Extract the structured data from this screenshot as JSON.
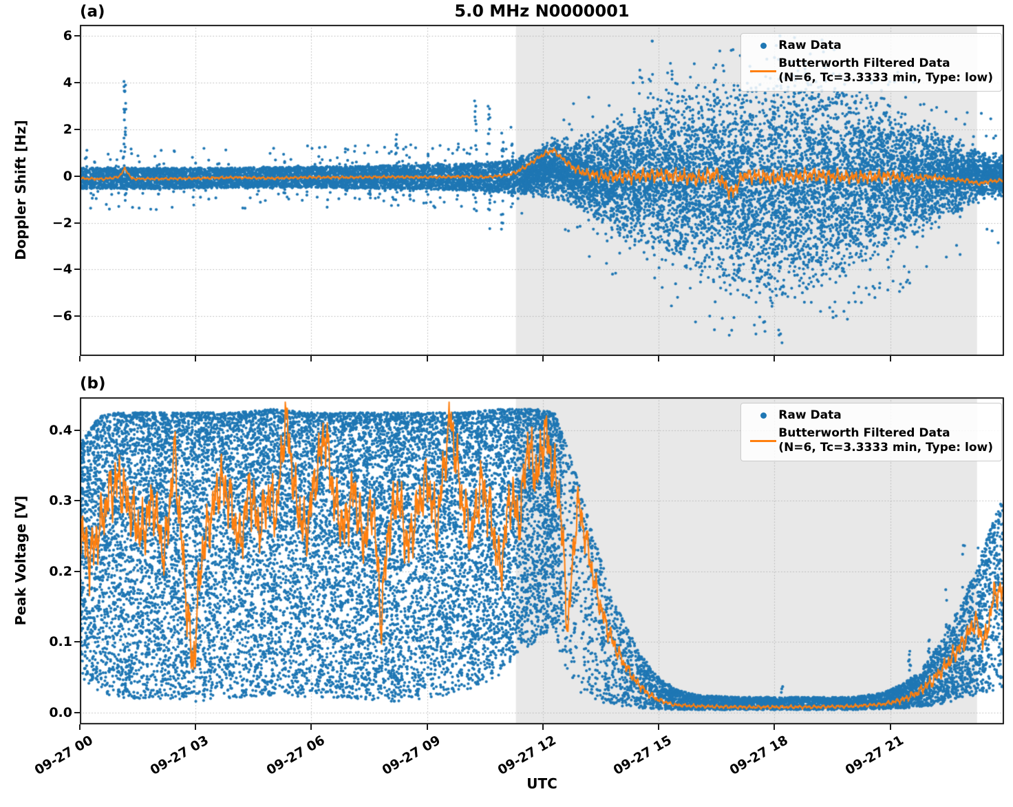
{
  "figure": {
    "title": "5.0 MHz N0000001",
    "xlabel": "UTC"
  },
  "panels": [
    {
      "tag": "(a)",
      "ylabel": "Doppler Shift [Hz]"
    },
    {
      "tag": "(b)",
      "ylabel": "Peak Voltage [V]"
    }
  ],
  "legend": {
    "items": [
      {
        "label": "Raw Data"
      },
      {
        "label_line1": "Butterworth Filtered Data",
        "label_line2": "(N=6, Tc=3.3333 min, Type: low)"
      }
    ]
  },
  "colors": {
    "raw": "#1f77b4",
    "filtered": "#ff7f0e",
    "shade": "#e8e8e8",
    "grid": "#b3b3b3",
    "spine": "#1a1a1a"
  },
  "chart_data": [
    {
      "type": "scatter+line",
      "panel": "(a)",
      "title": "5.0 MHz N0000001",
      "xlabel": "UTC",
      "ylabel": "Doppler Shift [Hz]",
      "xlim_hours": [
        0,
        23.95
      ],
      "ylim": [
        -7.7,
        6.47
      ],
      "xticks": {
        "hours": [
          0,
          3,
          6,
          9,
          12,
          15,
          18,
          21
        ],
        "labels": [
          "09-27 00",
          "09-27 03",
          "09-27 06",
          "09-27 09",
          "09-27 12",
          "09-27 15",
          "09-27 18",
          "09-27 21"
        ]
      },
      "yticks": {
        "values": [
          6,
          4,
          2,
          0,
          -2,
          -4,
          -6
        ],
        "labels": [
          "6",
          "4",
          "2",
          "0",
          "−2",
          "−4",
          "−6"
        ]
      },
      "grid": true,
      "legend_loc": "upper right",
      "legend_entries": [
        "Raw Data",
        "Butterworth Filtered Data (N=6, Tc=3.3333 min, Type: low)"
      ],
      "shaded_region_hours": {
        "t0": 11.3,
        "t1": 23.25
      },
      "series": [
        {
          "name": "Raw Data",
          "type": "scatter",
          "color": "#1f77b4",
          "n_points": 15000,
          "dist_wide": "triangular",
          "time_density": {
            "t": [
              0,
              11.4,
              11.5,
              23.95
            ],
            "w": [
              0.8,
              0.8,
              1.25,
              1.25
            ]
          },
          "envelope": {
            "t": [
              0,
              2,
              4,
              6,
              8,
              9.5,
              10.5,
              11.3,
              11.8,
              12.3,
              12.8,
              13.3,
              14,
              15,
              16,
              17,
              17.5,
              18,
              18.5,
              19,
              20,
              21,
              22,
              22.5,
              23,
              23.5,
              23.95
            ],
            "hi": [
              0.35,
              0.35,
              0.35,
              0.4,
              0.45,
              0.5,
              0.55,
              0.7,
              1.1,
              1.7,
              1.6,
              1.9,
              2.6,
              3.4,
              3.9,
              4.3,
              4.4,
              4.4,
              4.4,
              4.3,
              4.0,
              3.4,
              2.4,
              1.9,
              1.3,
              1.0,
              0.95
            ],
            "lo": [
              -0.55,
              -0.55,
              -0.5,
              -0.5,
              -0.55,
              -0.6,
              -0.65,
              -0.75,
              -0.85,
              -1.0,
              -1.3,
              -1.9,
              -2.8,
              -3.6,
              -4.4,
              -5.2,
              -5.5,
              -5.6,
              -5.5,
              -5.0,
              -4.4,
              -3.5,
              -2.4,
              -1.9,
              -1.35,
              -1.0,
              -0.95
            ]
          },
          "halo": {
            "frac": 0.05,
            "extra": 0.9,
            "t_max": 11.5
          },
          "outliers": {
            "frac": 0.018,
            "t_min": 12.5,
            "up": 1.6,
            "down": 1.9,
            "clip": [
              -7.45,
              6.3
            ]
          },
          "spikes": [
            {
              "t": 1.17,
              "lo": -1.05,
              "hi": 4.05,
              "n": 26
            },
            {
              "t": 2.05,
              "lo": -0.9,
              "hi": 0.6,
              "n": 8
            },
            {
              "t": 4.3,
              "lo": -0.7,
              "hi": 0.9,
              "n": 8
            },
            {
              "t": 5.3,
              "lo": -0.9,
              "hi": 1.0,
              "n": 10
            },
            {
              "t": 6.9,
              "lo": -0.9,
              "hi": 1.2,
              "n": 10
            },
            {
              "t": 7.5,
              "lo": -1.0,
              "hi": 1.4,
              "n": 10
            },
            {
              "t": 8.2,
              "lo": -1.6,
              "hi": 2.0,
              "n": 16
            },
            {
              "t": 8.55,
              "lo": -1.1,
              "hi": 1.5,
              "n": 10
            },
            {
              "t": 9.0,
              "lo": -0.8,
              "hi": 1.1,
              "n": 8
            },
            {
              "t": 10.25,
              "lo": -1.6,
              "hi": 3.3,
              "n": 20
            },
            {
              "t": 10.6,
              "lo": -2.6,
              "hi": 3.0,
              "n": 16
            },
            {
              "t": 10.95,
              "lo": -2.3,
              "hi": 2.2,
              "n": 14
            },
            {
              "t": 11.2,
              "lo": -1.4,
              "hi": 2.1,
              "n": 10
            },
            {
              "t": 14.85,
              "lo": -2.5,
              "hi": 5.9,
              "n": 12
            },
            {
              "t": 17.4,
              "lo": -7.35,
              "hi": 4.2,
              "n": 8
            },
            {
              "t": 18.15,
              "lo": -7.0,
              "hi": 4.5,
              "n": 8
            },
            {
              "t": 19.6,
              "lo": -6.3,
              "hi": 4.0,
              "n": 6
            }
          ]
        },
        {
          "name": "Butterworth Filtered Data (N=6, Tc=3.3333 min, Type: low)",
          "type": "line",
          "color": "#ff7f0e",
          "keypoints": {
            "t": [
              0,
              0.6,
              1.0,
              1.17,
              1.35,
              2,
              3,
              4,
              5,
              6,
              7,
              8,
              9,
              10,
              10.5,
              11,
              11.3,
              11.6,
              11.9,
              12.1,
              12.28,
              12.5,
              12.8,
              13.1,
              13.5,
              14,
              15,
              16,
              16.5,
              16.9,
              17.2,
              18,
              19,
              20,
              21,
              21.5,
              22,
              22.5,
              23,
              23.3,
              23.6,
              23.95
            ],
            "v": [
              -0.1,
              -0.13,
              -0.05,
              0.32,
              -0.12,
              -0.12,
              -0.1,
              -0.06,
              -0.1,
              -0.05,
              -0.06,
              -0.04,
              -0.05,
              -0.02,
              -0.05,
              0.02,
              0.15,
              0.45,
              0.8,
              1.0,
              1.1,
              0.75,
              0.35,
              0.12,
              0.0,
              -0.05,
              0.05,
              -0.1,
              0.1,
              -0.75,
              0.05,
              -0.1,
              0.05,
              -0.05,
              0.0,
              -0.1,
              -0.05,
              -0.12,
              -0.2,
              -0.32,
              -0.22,
              -0.18
            ]
          },
          "noise_amp": {
            "t": [
              0,
              10.8,
              11.5,
              12.6,
              13.5,
              16,
              19,
              21,
              21.8,
              22.5,
              23.95
            ],
            "a": [
              0.055,
              0.06,
              0.09,
              0.13,
              0.27,
              0.33,
              0.3,
              0.27,
              0.15,
              0.1,
              0.08
            ]
          },
          "clip": [
            -7.5,
            6.3
          ]
        }
      ]
    },
    {
      "type": "scatter+line",
      "panel": "(b)",
      "title": "5.0 MHz N0000001",
      "xlabel": "UTC",
      "ylabel": "Peak Voltage [V]",
      "xlim_hours": [
        0,
        23.95
      ],
      "ylim": [
        -0.0166,
        0.4468
      ],
      "xticks": {
        "hours": [
          0,
          3,
          6,
          9,
          12,
          15,
          18,
          21
        ],
        "labels": [
          "09-27 00",
          "09-27 03",
          "09-27 06",
          "09-27 09",
          "09-27 12",
          "09-27 15",
          "09-27 18",
          "09-27 21"
        ]
      },
      "yticks": {
        "values": [
          0.4,
          0.3,
          0.2,
          0.1,
          0.0
        ],
        "labels": [
          "0.4",
          "0.3",
          "0.2",
          "0.1",
          "0.0"
        ]
      },
      "grid": true,
      "legend_loc": "upper right",
      "legend_entries": [
        "Raw Data",
        "Butterworth Filtered Data (N=6, Tc=3.3333 min, Type: low)"
      ],
      "shaded_region_hours": {
        "t0": 11.3,
        "t1": 23.25
      },
      "series": [
        {
          "name": "Raw Data",
          "type": "scatter",
          "color": "#1f77b4",
          "n_points": 19000,
          "dist_wide": "topbias",
          "time_density": {
            "t": [
              0,
              12.49,
              12.5,
              20.9,
              21,
              23.95
            ],
            "w": [
              1.35,
              1.35,
              0.45,
              0.45,
              0.7,
              0.7
            ]
          },
          "envelope": {
            "t": [
              0,
              0.5,
              1,
              2,
              3,
              4,
              5,
              6,
              7,
              8,
              9,
              10,
              10.8,
              11.3,
              11.8,
              12.3,
              12.6,
              12.9,
              13.2,
              13.6,
              14.0,
              14.5,
              15.0,
              15.5,
              16,
              17,
              18,
              19,
              20,
              20.8,
              21.3,
              21.8,
              22.3,
              22.8,
              23.2,
              23.6,
              23.95
            ],
            "hi": [
              0.38,
              0.42,
              0.425,
              0.425,
              0.425,
              0.425,
              0.43,
              0.425,
              0.425,
              0.425,
              0.425,
              0.425,
              0.43,
              0.43,
              0.43,
              0.425,
              0.38,
              0.33,
              0.27,
              0.2,
              0.14,
              0.085,
              0.05,
              0.032,
              0.025,
              0.022,
              0.022,
              0.022,
              0.022,
              0.028,
              0.04,
              0.06,
              0.1,
              0.15,
              0.2,
              0.26,
              0.31
            ],
            "lo": [
              0.05,
              0.03,
              0.02,
              0.02,
              0.015,
              0.02,
              0.025,
              0.02,
              0.02,
              0.015,
              0.02,
              0.03,
              0.05,
              0.08,
              0.1,
              0.12,
              0.05,
              0.03,
              0.02,
              0.012,
              0.008,
              0.006,
              0.005,
              0.004,
              0.004,
              0.004,
              0.004,
              0.004,
              0.004,
              0.005,
              0.006,
              0.008,
              0.012,
              0.018,
              0.025,
              0.03,
              0.035
            ]
          },
          "halo": {
            "frac": 0.0,
            "extra": 0,
            "t_max": 0
          },
          "outliers": {
            "frac": 0.0,
            "t_min": 99,
            "up": 0,
            "down": 0,
            "clip": [
              0.003,
              0.44
            ]
          },
          "spikes": [
            {
              "t": 18.2,
              "lo": 0.02,
              "hi": 0.04,
              "n": 4
            },
            {
              "t": 21.5,
              "lo": 0.01,
              "hi": 0.1,
              "n": 10
            },
            {
              "t": 22.0,
              "lo": 0.015,
              "hi": 0.14,
              "n": 10
            },
            {
              "t": 22.45,
              "lo": 0.02,
              "hi": 0.19,
              "n": 10
            },
            {
              "t": 22.9,
              "lo": 0.03,
              "hi": 0.24,
              "n": 10
            },
            {
              "t": 23.3,
              "lo": 0.05,
              "hi": 0.28,
              "n": 10
            },
            {
              "t": 23.7,
              "lo": 0.06,
              "hi": 0.31,
              "n": 10
            }
          ]
        },
        {
          "name": "Butterworth Filtered Data (N=6, Tc=3.3333 min, Type: low)",
          "type": "line",
          "color": "#ff7f0e",
          "keypoints": {
            "t": [
              0,
              0.25,
              0.5,
              0.75,
              1.0,
              1.3,
              1.6,
              1.9,
              2.2,
              2.45,
              2.7,
              2.93,
              3.15,
              3.4,
              3.65,
              3.9,
              4.15,
              4.4,
              4.65,
              4.9,
              5.1,
              5.33,
              5.6,
              5.85,
              6.1,
              6.35,
              6.6,
              6.85,
              7.1,
              7.35,
              7.6,
              7.8,
              8.0,
              8.25,
              8.5,
              8.75,
              9.0,
              9.25,
              9.6,
              9.9,
              10.15,
              10.4,
              10.65,
              10.9,
              11.15,
              11.4,
              11.6,
              11.85,
              12.05,
              12.24,
              12.45,
              12.64,
              12.9,
              13.1,
              13.35,
              13.6,
              13.85,
              14.1,
              14.4,
              14.7,
              15.0,
              15.4,
              16.0,
              17.0,
              18.0,
              19.0,
              20.0,
              20.8,
              21.3,
              21.7,
              22.1,
              22.5,
              22.9,
              23.2,
              23.45,
              23.7,
              23.95
            ],
            "v": [
              0.27,
              0.22,
              0.26,
              0.31,
              0.33,
              0.29,
              0.25,
              0.3,
              0.22,
              0.37,
              0.2,
              0.06,
              0.22,
              0.28,
              0.33,
              0.3,
              0.24,
              0.32,
              0.26,
              0.31,
              0.28,
              0.42,
              0.3,
              0.25,
              0.33,
              0.4,
              0.3,
              0.26,
              0.32,
              0.24,
              0.3,
              0.13,
              0.26,
              0.31,
              0.23,
              0.29,
              0.33,
              0.26,
              0.42,
              0.3,
              0.25,
              0.33,
              0.28,
              0.2,
              0.31,
              0.27,
              0.38,
              0.33,
              0.4,
              0.35,
              0.3,
              0.12,
              0.3,
              0.25,
              0.18,
              0.13,
              0.095,
              0.07,
              0.045,
              0.028,
              0.018,
              0.011,
              0.009,
              0.008,
              0.008,
              0.008,
              0.009,
              0.012,
              0.018,
              0.028,
              0.045,
              0.07,
              0.1,
              0.13,
              0.1,
              0.17,
              0.17
            ]
          },
          "noise_amp": {
            "t": [
              0,
              12.4,
              13.2,
              14.2,
              15.2,
              20.8,
              21.6,
              22.5,
              23.95
            ],
            "a": [
              0.04,
              0.038,
              0.022,
              0.008,
              0.0025,
              0.0025,
              0.006,
              0.012,
              0.02
            ]
          },
          "clip": [
            0.004,
            0.44
          ]
        }
      ]
    }
  ]
}
